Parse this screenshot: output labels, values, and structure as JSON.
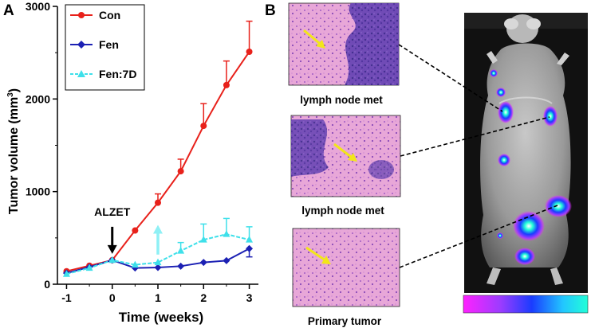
{
  "panels": {
    "a_label": "A",
    "b_label": "B"
  },
  "chart_data": {
    "type": "line",
    "title": "",
    "xlabel": "Time (weeks)",
    "ylabel": "Tumor volume (mm3)",
    "ylabel_main": "Tumor volume (mm",
    "ylabel_sup": "3",
    "ylabel_tail": ")",
    "xlim": [
      -1.2,
      3.2
    ],
    "ylim": [
      0,
      3000
    ],
    "x_ticks": [
      -1,
      0,
      1,
      2,
      3
    ],
    "x_tick_labels": [
      "-1",
      "0",
      "1",
      "2",
      "3"
    ],
    "y_ticks": [
      0,
      1000,
      2000,
      3000
    ],
    "y_tick_labels": [
      "0",
      "1000",
      "2000",
      "3000"
    ],
    "annotation": {
      "text": "ALZET",
      "x": 0,
      "arrow_from": 620,
      "arrow_to": 310
    },
    "rebound_arrow": {
      "x": 1,
      "from": 320,
      "to": 640
    },
    "series": [
      {
        "name": "Con",
        "color": "#e8211b",
        "marker": "circle",
        "x": [
          -1,
          -0.5,
          0,
          0.5,
          1,
          1.5,
          2,
          2.5,
          3
        ],
        "values": [
          140,
          200,
          260,
          580,
          880,
          1220,
          1710,
          2150,
          2510
        ],
        "errors": [
          0,
          0,
          0,
          0,
          95,
          130,
          240,
          260,
          330
        ]
      },
      {
        "name": "Fen",
        "color": "#1c21b4",
        "marker": "diamond",
        "x": [
          -1,
          -0.5,
          0,
          0.5,
          1,
          1.5,
          2,
          2.5,
          3
        ],
        "values": [
          120,
          185,
          260,
          175,
          180,
          195,
          235,
          255,
          385
        ],
        "errors": [
          0,
          0,
          0,
          0,
          0,
          0,
          0,
          0,
          0
        ]
      },
      {
        "name": "Fen:7D",
        "color": "#3ee0ea",
        "marker": "triangle",
        "x": [
          -1,
          -0.5,
          0,
          0.5,
          1,
          1.5,
          2,
          2.5,
          3
        ],
        "values": [
          110,
          175,
          260,
          210,
          235,
          360,
          480,
          540,
          480
        ],
        "errors": [
          0,
          0,
          0,
          0,
          0,
          90,
          170,
          170,
          140
        ]
      }
    ]
  },
  "histology": [
    {
      "caption": "lymph node met"
    },
    {
      "caption": "lymph node met"
    },
    {
      "caption": "Primary tumor"
    }
  ],
  "colors": {
    "stain_pink": "#e7a3d6",
    "stain_purple": "#7a4cb6",
    "arrow_yellow": "#f2e61a",
    "imaging_bg": "#111111"
  }
}
